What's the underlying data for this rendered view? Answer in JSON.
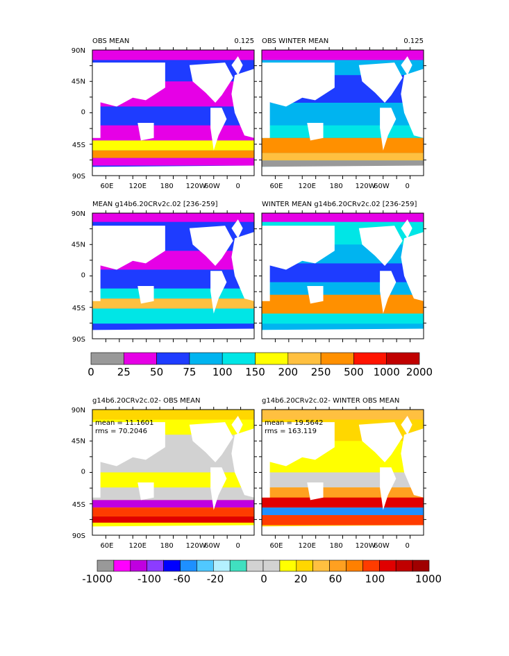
{
  "panels": [
    {
      "title": "OBS MEAN",
      "corner_label": "0.125",
      "yticks": [
        "90N",
        "45N",
        "0",
        "45S",
        "90S"
      ],
      "xticks": [
        "60E",
        "120E",
        "180",
        "120W",
        "60W",
        "0"
      ]
    },
    {
      "title": "OBS WINTER MEAN",
      "corner_label": "0.125",
      "xticks": [
        "60E",
        "120E",
        "180",
        "120W",
        "60W",
        "0"
      ]
    },
    {
      "title": "MEAN g14b6.20CRv2c.02 [236-259]",
      "yticks": [
        "90N",
        "45N",
        "0",
        "45S",
        "90S"
      ]
    },
    {
      "title": "WINTER MEAN g14b6.20CRv2c.02 [236-259]"
    },
    {
      "title": "g14b6.20CRv2c.02- OBS MEAN",
      "stats": [
        "mean = 11.1601",
        "rms = 70.2046"
      ],
      "yticks": [
        "90N",
        "45N",
        "0",
        "45S",
        "90S"
      ],
      "xticks": [
        "60E",
        "120E",
        "180",
        "120W",
        "60W",
        "0"
      ]
    },
    {
      "title": "g14b6.20CRv2c.02- WINTER OBS MEAN",
      "stats": [
        "mean = 19.5642",
        "rms = 163.119"
      ],
      "xticks": [
        "60E",
        "120E",
        "180",
        "120W",
        "60W",
        "0"
      ]
    }
  ],
  "colorbar1": {
    "colors": [
      "#999999",
      "#e600e6",
      "#1e3cff",
      "#00b4f0",
      "#00e6e6",
      "#ffff00",
      "#ffc040",
      "#ff9000",
      "#ff1400",
      "#c00000"
    ],
    "labels": [
      "0",
      "25",
      "50",
      "75",
      "100",
      "150",
      "200",
      "250",
      "500",
      "1000",
      "2000"
    ]
  },
  "colorbar2": {
    "colors": [
      "#999999",
      "#ff00ff",
      "#c000e0",
      "#8c3cff",
      "#0000ff",
      "#1e90ff",
      "#50c8ff",
      "#b4f0ff",
      "#40e0c0",
      "#d2d2d2",
      "#d2d2d2",
      "#ffff00",
      "#ffd700",
      "#ffc040",
      "#ffa020",
      "#ff8000",
      "#ff3c00",
      "#e00000",
      "#c00000",
      "#a00000"
    ],
    "labels": [
      "-1000",
      "-100",
      "-60",
      "-20",
      "0",
      "20",
      "60",
      "100",
      "1000"
    ]
  }
}
